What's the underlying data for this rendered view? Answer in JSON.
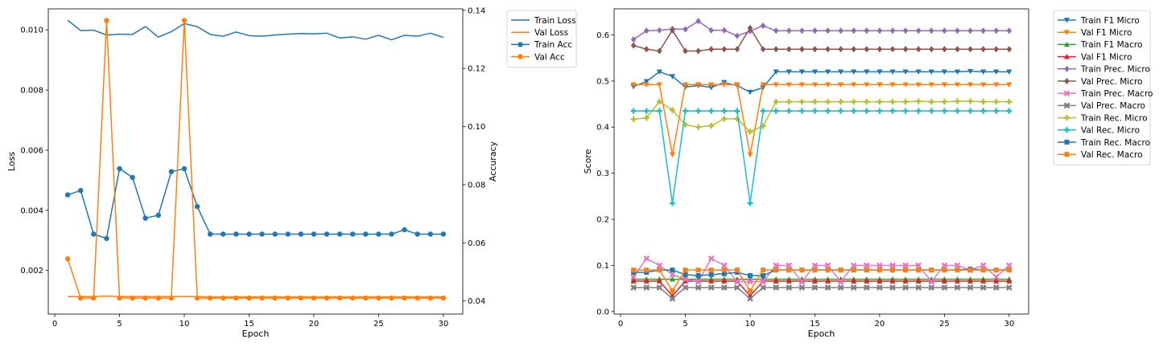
{
  "chart_data": [
    {
      "type": "line",
      "xlabel": "Epoch",
      "ylabel": "Loss",
      "ylabel_right": "Accuracy",
      "xlim": [
        -0.5,
        31.5
      ],
      "ylim": [
        0.00055,
        0.0107
      ],
      "ylim_right": [
        0.0355,
        0.1405
      ],
      "xticks": [
        0,
        5,
        10,
        15,
        20,
        25,
        30
      ],
      "yticks": [
        0.002,
        0.004,
        0.006,
        0.008,
        0.01
      ],
      "yticks_right": [
        0.04,
        0.06,
        0.08,
        0.1,
        0.12,
        0.14
      ],
      "ytick_labels": [
        "0.002",
        "0.004",
        "0.006",
        "0.008",
        "0.010"
      ],
      "ytick_labels_right": [
        "0.04",
        "0.06",
        "0.08",
        "0.10",
        "0.12",
        "0.14"
      ],
      "legend_position": "outside-top-right",
      "x": [
        1,
        2,
        3,
        4,
        5,
        6,
        7,
        8,
        9,
        10,
        11,
        12,
        13,
        14,
        15,
        16,
        17,
        18,
        19,
        20,
        21,
        22,
        23,
        24,
        25,
        26,
        27,
        28,
        29,
        30
      ],
      "series": [
        {
          "name": "Train Loss",
          "axis": "left",
          "color": "#1f77b4",
          "marker": "none",
          "values": [
            0.01032,
            0.00998,
            0.00999,
            0.00983,
            0.00986,
            0.00985,
            0.01011,
            0.00976,
            0.00994,
            0.01021,
            0.01011,
            0.00985,
            0.00979,
            0.00993,
            0.00981,
            0.00979,
            0.00983,
            0.00986,
            0.00988,
            0.00987,
            0.00989,
            0.00973,
            0.00977,
            0.00969,
            0.00982,
            0.00967,
            0.00982,
            0.00979,
            0.00989,
            0.00975
          ]
        },
        {
          "name": "Val Loss",
          "axis": "left",
          "color": "#ff7f0e",
          "marker": "none",
          "values": [
            0.00113,
            0.00113,
            0.00113,
            0.00115,
            0.00113,
            0.00113,
            0.00113,
            0.00113,
            0.00113,
            0.00113,
            0.00113,
            0.00112,
            0.00112,
            0.00112,
            0.00112,
            0.00112,
            0.00112,
            0.00112,
            0.00112,
            0.00112,
            0.00112,
            0.00112,
            0.00112,
            0.00112,
            0.00112,
            0.00112,
            0.00112,
            0.00112,
            0.00112,
            0.00112
          ]
        },
        {
          "name": "Train Acc",
          "axis": "right",
          "color": "#1f77b4",
          "marker": "circle",
          "values": [
            0.0765,
            0.078,
            0.063,
            0.0615,
            0.0855,
            0.0825,
            0.0685,
            0.0695,
            0.0845,
            0.0855,
            0.0725,
            0.063,
            0.063,
            0.063,
            0.063,
            0.063,
            0.063,
            0.063,
            0.063,
            0.063,
            0.063,
            0.063,
            0.063,
            0.063,
            0.063,
            0.063,
            0.0645,
            0.063,
            0.063,
            0.063
          ]
        },
        {
          "name": "Val Acc",
          "axis": "right",
          "color": "#ff7f0e",
          "marker": "circle",
          "values": [
            0.0545,
            0.041,
            0.041,
            0.1365,
            0.041,
            0.041,
            0.041,
            0.041,
            0.041,
            0.1365,
            0.041,
            0.041,
            0.041,
            0.041,
            0.041,
            0.041,
            0.041,
            0.041,
            0.041,
            0.041,
            0.041,
            0.041,
            0.041,
            0.041,
            0.041,
            0.041,
            0.041,
            0.041,
            0.041,
            0.041
          ]
        }
      ]
    },
    {
      "type": "line",
      "xlabel": "Epoch",
      "ylabel": "Score",
      "xlim": [
        -0.5,
        31.5
      ],
      "ylim": [
        -0.0055,
        0.6565
      ],
      "xticks": [
        0,
        5,
        10,
        15,
        20,
        25,
        30
      ],
      "yticks": [
        0.0,
        0.1,
        0.2,
        0.3,
        0.4,
        0.5,
        0.6
      ],
      "ytick_labels": [
        "0.0",
        "0.1",
        "0.2",
        "0.3",
        "0.4",
        "0.5",
        "0.6"
      ],
      "legend_position": "outside-top-right",
      "x": [
        1,
        2,
        3,
        4,
        5,
        6,
        7,
        8,
        9,
        10,
        11,
        12,
        13,
        14,
        15,
        16,
        17,
        18,
        19,
        20,
        21,
        22,
        23,
        24,
        25,
        26,
        27,
        28,
        29,
        30
      ],
      "series": [
        {
          "name": "Train F1 Micro",
          "color": "#1f77b4",
          "marker": "tri_down",
          "values": [
            0.488,
            0.499,
            0.52,
            0.51,
            0.487,
            0.49,
            0.486,
            0.497,
            0.49,
            0.476,
            0.486,
            0.52,
            0.52,
            0.52,
            0.52,
            0.52,
            0.52,
            0.52,
            0.52,
            0.52,
            0.52,
            0.52,
            0.52,
            0.52,
            0.52,
            0.52,
            0.521,
            0.52,
            0.52,
            0.52
          ]
        },
        {
          "name": "Val F1 Micro",
          "color": "#ff7f0e",
          "marker": "tri_down",
          "values": [
            0.492,
            0.492,
            0.492,
            0.34,
            0.492,
            0.492,
            0.492,
            0.492,
            0.492,
            0.34,
            0.492,
            0.492,
            0.492,
            0.492,
            0.492,
            0.492,
            0.492,
            0.492,
            0.492,
            0.492,
            0.492,
            0.492,
            0.492,
            0.492,
            0.492,
            0.492,
            0.492,
            0.492,
            0.492,
            0.492
          ]
        },
        {
          "name": "Train F1 Macro",
          "color": "#2ca02c",
          "marker": "tri_up",
          "values": [
            0.07,
            0.07,
            0.07,
            0.07,
            0.07,
            0.07,
            0.07,
            0.07,
            0.07,
            0.07,
            0.07,
            0.07,
            0.07,
            0.07,
            0.07,
            0.07,
            0.07,
            0.07,
            0.07,
            0.07,
            0.07,
            0.07,
            0.07,
            0.07,
            0.07,
            0.07,
            0.07,
            0.07,
            0.07,
            0.07
          ]
        },
        {
          "name": "Val F1 Micro",
          "color": "#d62728",
          "marker": "tri_up",
          "values": [
            0.066,
            0.066,
            0.066,
            0.034,
            0.066,
            0.066,
            0.066,
            0.066,
            0.066,
            0.034,
            0.066,
            0.066,
            0.066,
            0.066,
            0.066,
            0.066,
            0.066,
            0.066,
            0.066,
            0.066,
            0.066,
            0.066,
            0.066,
            0.066,
            0.066,
            0.066,
            0.066,
            0.066,
            0.066,
            0.066
          ]
        },
        {
          "name": "Train Prec. Micro",
          "color": "#9467bd",
          "marker": "diamond",
          "values": [
            0.59,
            0.609,
            0.61,
            0.613,
            0.612,
            0.63,
            0.61,
            0.61,
            0.598,
            0.608,
            0.62,
            0.609,
            0.609,
            0.609,
            0.609,
            0.609,
            0.609,
            0.609,
            0.609,
            0.609,
            0.609,
            0.609,
            0.609,
            0.609,
            0.609,
            0.609,
            0.609,
            0.609,
            0.609,
            0.609
          ]
        },
        {
          "name": "Val Prec. Micro",
          "color": "#8c564b",
          "marker": "diamond",
          "values": [
            0.577,
            0.569,
            0.565,
            0.61,
            0.565,
            0.565,
            0.569,
            0.569,
            0.569,
            0.615,
            0.569,
            0.569,
            0.569,
            0.569,
            0.569,
            0.569,
            0.569,
            0.569,
            0.569,
            0.569,
            0.569,
            0.569,
            0.569,
            0.569,
            0.569,
            0.569,
            0.569,
            0.569,
            0.569,
            0.569
          ]
        },
        {
          "name": "Train Prec. Macro",
          "color": "#e377c2",
          "marker": "x",
          "values": [
            0.075,
            0.115,
            0.1,
            0.08,
            0.07,
            0.065,
            0.115,
            0.1,
            0.065,
            0.065,
            0.065,
            0.1,
            0.1,
            0.065,
            0.1,
            0.1,
            0.065,
            0.1,
            0.1,
            0.1,
            0.1,
            0.1,
            0.1,
            0.065,
            0.1,
            0.1,
            0.09,
            0.1,
            0.075,
            0.1
          ]
        },
        {
          "name": "Val Prec. Macro",
          "color": "#7f7f7f",
          "marker": "x",
          "values": [
            0.052,
            0.052,
            0.052,
            0.028,
            0.052,
            0.052,
            0.052,
            0.052,
            0.052,
            0.028,
            0.052,
            0.052,
            0.052,
            0.052,
            0.052,
            0.052,
            0.052,
            0.052,
            0.052,
            0.052,
            0.052,
            0.052,
            0.052,
            0.052,
            0.052,
            0.052,
            0.052,
            0.052,
            0.052,
            0.052
          ]
        },
        {
          "name": "Train Rec. Micro",
          "color": "#bcbd22",
          "marker": "plus",
          "values": [
            0.417,
            0.42,
            0.455,
            0.437,
            0.405,
            0.4,
            0.403,
            0.418,
            0.418,
            0.39,
            0.402,
            0.455,
            0.455,
            0.455,
            0.455,
            0.455,
            0.455,
            0.455,
            0.455,
            0.455,
            0.455,
            0.455,
            0.456,
            0.455,
            0.455,
            0.456,
            0.456,
            0.455,
            0.455,
            0.455
          ]
        },
        {
          "name": "Val Rec. Micro",
          "color": "#17becf",
          "marker": "plus",
          "values": [
            0.435,
            0.435,
            0.435,
            0.235,
            0.435,
            0.435,
            0.435,
            0.435,
            0.435,
            0.235,
            0.435,
            0.435,
            0.435,
            0.435,
            0.435,
            0.435,
            0.435,
            0.435,
            0.435,
            0.435,
            0.435,
            0.435,
            0.435,
            0.435,
            0.435,
            0.435,
            0.435,
            0.435,
            0.435,
            0.435
          ]
        },
        {
          "name": "Train Rec. Macro",
          "color": "#1f77b4",
          "marker": "square",
          "values": [
            0.085,
            0.085,
            0.09,
            0.09,
            0.08,
            0.078,
            0.08,
            0.082,
            0.085,
            0.078,
            0.078,
            0.09,
            0.09,
            0.09,
            0.09,
            0.09,
            0.09,
            0.09,
            0.09,
            0.09,
            0.09,
            0.09,
            0.09,
            0.09,
            0.09,
            0.09,
            0.092,
            0.09,
            0.09,
            0.09
          ]
        },
        {
          "name": "Val Rec. Macro",
          "color": "#ff7f0e",
          "marker": "square",
          "values": [
            0.09,
            0.09,
            0.09,
            0.045,
            0.09,
            0.09,
            0.09,
            0.09,
            0.09,
            0.045,
            0.09,
            0.09,
            0.09,
            0.09,
            0.09,
            0.09,
            0.09,
            0.09,
            0.09,
            0.09,
            0.09,
            0.09,
            0.09,
            0.09,
            0.09,
            0.09,
            0.09,
            0.09,
            0.09,
            0.09
          ]
        }
      ]
    }
  ]
}
